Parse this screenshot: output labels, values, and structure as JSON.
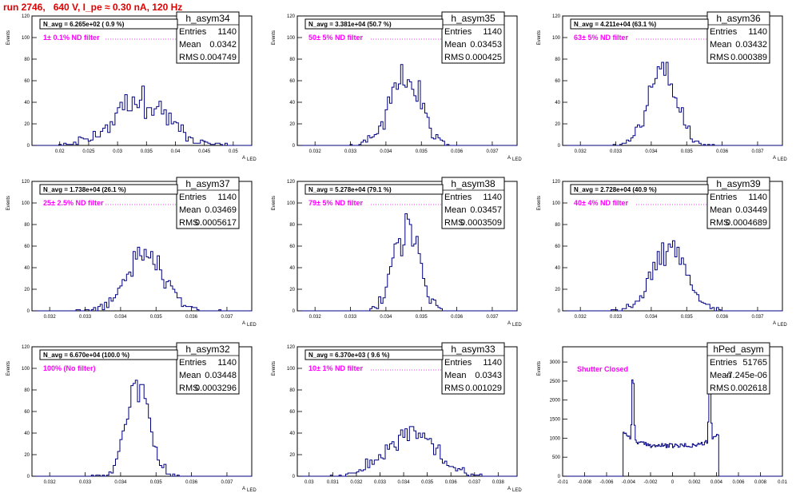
{
  "title": "run 2746,   640 V, I_pe ≈ 0.30 nA, 120 Hz",
  "chart_data": [
    {
      "type": "bar",
      "name": "h_asym34",
      "entries": "1140",
      "mean": "0.0342",
      "rms": "0.004749",
      "navg": "N_avg = 6.265e+02 ( 0.9 %)",
      "filter": "1± 0.1% ND filter",
      "xlim": [
        0.0152,
        0.0532
      ],
      "ylim": [
        0,
        120
      ],
      "xticks": [
        "0.02",
        "0.025",
        "0.03",
        "0.035",
        "0.04",
        "0.045",
        "0.05"
      ],
      "yticks": [
        "0",
        "20",
        "40",
        "60",
        "80",
        "100",
        "120"
      ],
      "xlabel": "A",
      "xlabel_sub": "LED",
      "ylabel": "Events",
      "mean_value": 0.0342,
      "sigma": 0.0047,
      "entries_value": 1140,
      "nbins": 90,
      "shape": "gauss",
      "seed": 11
    },
    {
      "type": "bar",
      "name": "h_asym35",
      "entries": "1140",
      "mean": "0.03453",
      "rms": "0.000425",
      "navg": "N_avg = 3.381e+04 (50.7 %)",
      "filter": "50± 5% ND filter",
      "xlim": [
        0.0315,
        0.0377
      ],
      "ylim": [
        0,
        120
      ],
      "xticks": [
        "0.032",
        "0.033",
        "0.034",
        "0.035",
        "0.036",
        "0.037"
      ],
      "yticks": [
        "0",
        "20",
        "40",
        "60",
        "80",
        "100",
        "120"
      ],
      "xlabel": "A",
      "xlabel_sub": "LED",
      "ylabel": "Events",
      "mean_value": 0.03453,
      "sigma": 0.000425,
      "entries_value": 1140,
      "nbins": 100,
      "shape": "gauss",
      "seed": 22
    },
    {
      "type": "bar",
      "name": "h_asym36",
      "entries": "1140",
      "mean": "0.03432",
      "rms": "0.000389",
      "navg": "N_avg = 4.211e+04 (63.1 %)",
      "filter": "63± 5% ND filter",
      "xlim": [
        0.0315,
        0.0377
      ],
      "ylim": [
        0,
        120
      ],
      "xticks": [
        "0.032",
        "0.033",
        "0.034",
        "0.035",
        "0.036",
        "0.037"
      ],
      "yticks": [
        "0",
        "20",
        "40",
        "60",
        "80",
        "100",
        "120"
      ],
      "xlabel": "A",
      "xlabel_sub": "LED",
      "ylabel": "Events",
      "mean_value": 0.03432,
      "sigma": 0.000389,
      "entries_value": 1140,
      "nbins": 100,
      "shape": "gauss",
      "seed": 33
    },
    {
      "type": "bar",
      "name": "h_asym37",
      "entries": "1140",
      "mean": "0.03469",
      "rms": "0.0005617",
      "navg": "N_avg = 1.738e+04 (26.1 %)",
      "filter": "25± 2.5% ND filter",
      "xlim": [
        0.0315,
        0.0377
      ],
      "ylim": [
        0,
        120
      ],
      "xticks": [
        "0.032",
        "0.033",
        "0.034",
        "0.035",
        "0.036",
        "0.037"
      ],
      "yticks": [
        "0",
        "20",
        "40",
        "60",
        "80",
        "100",
        "120"
      ],
      "xlabel": "A",
      "xlabel_sub": "LED",
      "ylabel": "Events",
      "mean_value": 0.03469,
      "sigma": 0.00056,
      "entries_value": 1140,
      "nbins": 100,
      "shape": "gauss",
      "seed": 44
    },
    {
      "type": "bar",
      "name": "h_asym38",
      "entries": "1140",
      "mean": "0.03457",
      "rms": "0.0003509",
      "navg": "N_avg = 5.278e+04 (79.1 %)",
      "filter": "79± 5% ND filter",
      "xlim": [
        0.0315,
        0.0377
      ],
      "ylim": [
        0,
        120
      ],
      "xticks": [
        "0.032",
        "0.033",
        "0.034",
        "0.035",
        "0.036",
        "0.037"
      ],
      "yticks": [
        "0",
        "20",
        "40",
        "60",
        "80",
        "100",
        "120"
      ],
      "xlabel": "A",
      "xlabel_sub": "LED",
      "ylabel": "Events",
      "mean_value": 0.03457,
      "sigma": 0.00035,
      "entries_value": 1140,
      "nbins": 100,
      "shape": "gauss",
      "seed": 55
    },
    {
      "type": "bar",
      "name": "h_asym39",
      "entries": "1140",
      "mean": "0.03449",
      "rms": "0.0004689",
      "navg": "N_avg = 2.728e+04 (40.9 %)",
      "filter": "40± 4% ND filter",
      "xlim": [
        0.0315,
        0.0377
      ],
      "ylim": [
        0,
        120
      ],
      "xticks": [
        "0.032",
        "0.033",
        "0.034",
        "0.035",
        "0.036",
        "0.037"
      ],
      "yticks": [
        "0",
        "20",
        "40",
        "60",
        "80",
        "100",
        "120"
      ],
      "xlabel": "A",
      "xlabel_sub": "LED",
      "ylabel": "Events",
      "mean_value": 0.03449,
      "sigma": 0.00047,
      "entries_value": 1140,
      "nbins": 100,
      "shape": "gauss",
      "seed": 66
    },
    {
      "type": "bar",
      "name": "h_asym32",
      "entries": "1140",
      "mean": "0.03448",
      "rms": "0.0003296",
      "navg": "N_avg = 6.670e+04 (100.0 %)",
      "filter": "100% (No filter)",
      "xlim": [
        0.0315,
        0.0377
      ],
      "ylim": [
        0,
        120
      ],
      "xticks": [
        "0.032",
        "0.033",
        "0.034",
        "0.035",
        "0.036",
        "0.037"
      ],
      "yticks": [
        "0",
        "20",
        "40",
        "60",
        "80",
        "100",
        "120"
      ],
      "xlabel": "A",
      "xlabel_sub": "LED",
      "ylabel": "Events",
      "mean_value": 0.03448,
      "sigma": 0.00033,
      "entries_value": 1140,
      "nbins": 100,
      "shape": "gauss",
      "seed": 77
    },
    {
      "type": "bar",
      "name": "h_asym33",
      "entries": "1140",
      "mean": "0.0343",
      "rms": "0.001029",
      "navg": "N_avg = 6.370e+03 ( 9.6 %)",
      "filter": "10± 1% ND filter",
      "xlim": [
        0.0295,
        0.0388
      ],
      "ylim": [
        0,
        120
      ],
      "xticks": [
        "0.03",
        "0.031",
        "0.032",
        "0.033",
        "0.034",
        "0.035",
        "0.036",
        "0.037",
        "0.038"
      ],
      "yticks": [
        "0",
        "20",
        "40",
        "60",
        "80",
        "100",
        "120"
      ],
      "xlabel": "A",
      "xlabel_sub": "LED",
      "ylabel": "Events",
      "mean_value": 0.0343,
      "sigma": 0.00103,
      "entries_value": 1140,
      "nbins": 100,
      "shape": "gauss",
      "seed": 88
    },
    {
      "type": "bar",
      "name": "hPed_asym",
      "entries": "51765",
      "mean": "-7.245e-06",
      "rms": "0.002618",
      "navg": "",
      "filter": "Shutter Closed",
      "xlim": [
        -0.01,
        0.01
      ],
      "ylim": [
        0,
        3400
      ],
      "xticks": [
        "-0.01",
        "-0.008",
        "-0.006",
        "-0.004",
        "-0.002",
        "0",
        "0.002",
        "0.004",
        "0.006",
        "0.008",
        "0.01"
      ],
      "yticks": [
        "0",
        "500",
        "1000",
        "1500",
        "2000",
        "2500",
        "3000"
      ],
      "xlabel": "",
      "xlabel_sub": "",
      "ylabel": "Events",
      "mean_value": 0,
      "sigma": 0.0026,
      "entries_value": 51765,
      "nbins": 200,
      "shape": "ped",
      "seed": 99
    }
  ]
}
